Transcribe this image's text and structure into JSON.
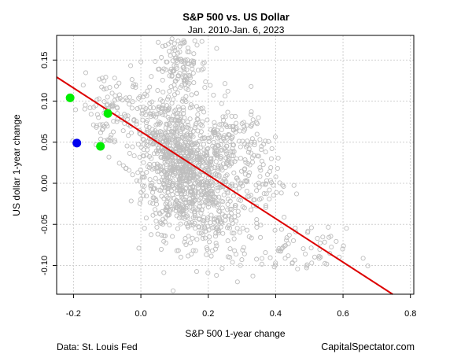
{
  "chart_data": {
    "type": "scatter",
    "title": "S&P 500 vs. US Dollar",
    "subtitle": "Jan. 2010-Jan. 6, 2023",
    "xlabel": "S&P 500 1-year change",
    "ylabel": "US dollar 1-year change",
    "xlim": [
      -0.25,
      0.81
    ],
    "ylim": [
      -0.135,
      0.18
    ],
    "x_ticks": [
      -0.2,
      0.0,
      0.2,
      0.4,
      0.6,
      0.8
    ],
    "x_tick_labels": [
      "-0.2",
      "0.0",
      "0.2",
      "0.4",
      "0.6",
      "0.8"
    ],
    "y_ticks": [
      -0.1,
      -0.05,
      0.0,
      0.05,
      0.1,
      0.15
    ],
    "y_tick_labels": [
      "-0.10",
      "-0.05",
      "0.00",
      "0.05",
      "0.10",
      "0.15"
    ],
    "grid": true,
    "regression_line": {
      "intercept": 0.063,
      "slope": -0.265,
      "color": "#dd0000"
    },
    "scatter_color": "#bebebe",
    "clusters": [
      {
        "cx": 0.13,
        "cy": 0.01,
        "sx": 0.06,
        "sy": 0.035,
        "n": 700
      },
      {
        "cx": 0.06,
        "cy": 0.06,
        "sx": 0.05,
        "sy": 0.03,
        "n": 250
      },
      {
        "cx": 0.12,
        "cy": 0.14,
        "sx": 0.04,
        "sy": 0.02,
        "n": 130
      },
      {
        "cx": 0.27,
        "cy": 0.04,
        "sx": 0.05,
        "sy": 0.03,
        "n": 180
      },
      {
        "cx": 0.22,
        "cy": -0.045,
        "sx": 0.06,
        "sy": 0.03,
        "n": 160
      },
      {
        "cx": -0.1,
        "cy": 0.09,
        "sx": 0.04,
        "sy": 0.025,
        "n": 90
      },
      {
        "cx": 0.45,
        "cy": -0.085,
        "sx": 0.08,
        "sy": 0.015,
        "n": 70
      },
      {
        "cx": 0.35,
        "cy": 0.0,
        "sx": 0.05,
        "sy": 0.03,
        "n": 60
      }
    ],
    "highlight_points": [
      {
        "x": -0.21,
        "y": 0.104,
        "color": "#00ee00"
      },
      {
        "x": -0.098,
        "y": 0.085,
        "color": "#00ee00"
      },
      {
        "x": -0.12,
        "y": 0.045,
        "color": "#00ee00"
      },
      {
        "x": -0.19,
        "y": 0.049,
        "color": "#0000ee"
      }
    ]
  },
  "footer": {
    "source": "Data: St. Louis Fed",
    "site": "CapitalSpectator.com"
  }
}
